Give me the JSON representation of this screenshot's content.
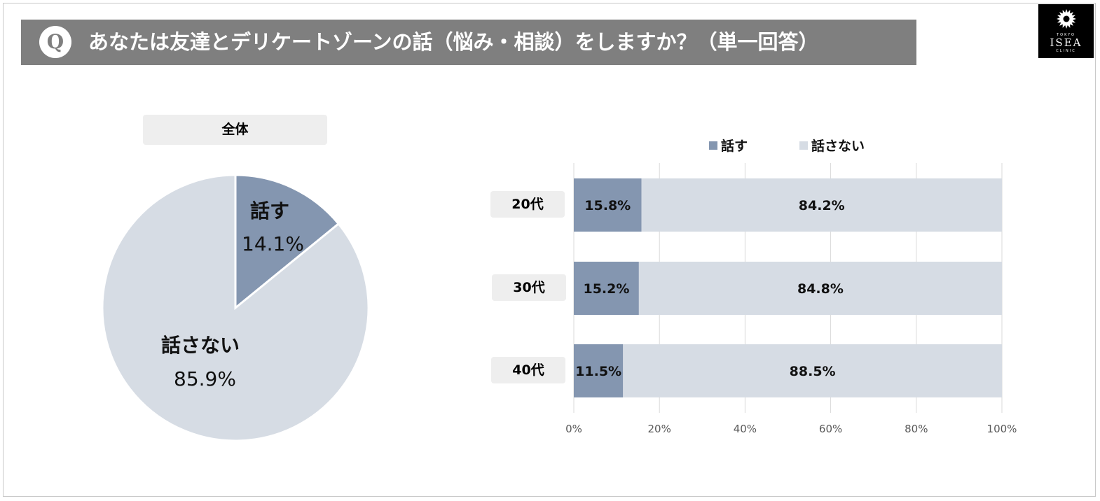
{
  "question": {
    "badge": "Q",
    "text": "あなたは友達とデリケートゾーンの話（悩み・相談）をしますか？（単一回答）"
  },
  "logo": {
    "top_text": "TOKYO",
    "main_text": "ISEA",
    "bottom_text": "CLINIC",
    "icon": "flower-icon"
  },
  "colors": {
    "talk": "#8496b0",
    "no_talk": "#d6dce4",
    "banner": "#7f7f7f"
  },
  "chart_data": [
    {
      "type": "pie",
      "title": "全体",
      "slices": [
        {
          "label": "話す",
          "value": 14.1,
          "display": "14.1%"
        },
        {
          "label": "話さない",
          "value": 85.9,
          "display": "85.9%"
        }
      ]
    },
    {
      "type": "bar",
      "orientation": "horizontal",
      "stacked": true,
      "categories": [
        "20代",
        "30代",
        "40代"
      ],
      "series": [
        {
          "name": "話す",
          "values": [
            15.8,
            15.2,
            11.5
          ],
          "labels": [
            "15.8%",
            "15.2%",
            "11.5%"
          ]
        },
        {
          "name": "話さない",
          "values": [
            84.2,
            84.8,
            88.5
          ],
          "labels": [
            "84.2%",
            "84.8%",
            "88.5%"
          ]
        }
      ],
      "xlim": [
        0,
        100
      ],
      "xticks": [
        "0%",
        "20%",
        "40%",
        "60%",
        "80%",
        "100%"
      ],
      "legend": "top",
      "grid": true
    }
  ]
}
